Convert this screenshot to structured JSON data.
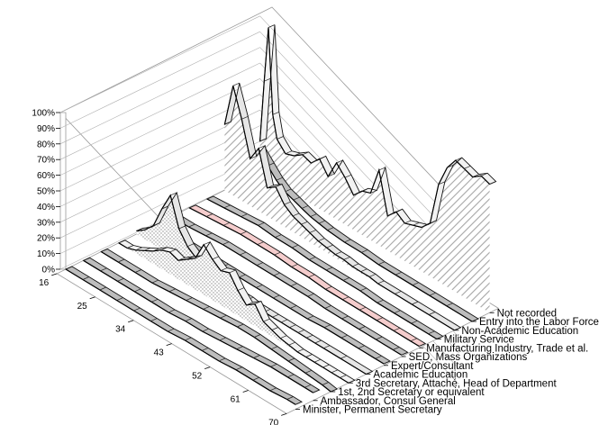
{
  "chart_data": {
    "type": "area",
    "subtype": "3d-area",
    "title": "",
    "x_label": "",
    "z_label": "",
    "x_ticks": [
      "16",
      "25",
      "34",
      "43",
      "52",
      "61",
      "70"
    ],
    "z_ticks": [
      "0%",
      "10%",
      "20%",
      "30%",
      "40%",
      "50%",
      "60%",
      "70%",
      "80%",
      "90%",
      "100%"
    ],
    "zlim": [
      0,
      100
    ],
    "x_range": [
      16,
      70
    ],
    "grid": true,
    "series_axis_labels": [
      "Minister, Permanent Secretary",
      "Ambassador, Consul General",
      "1st, 2nd Secretary or equivalent",
      "3rd Secretary, Attaché, Head of Department",
      "Academic Education",
      "Expert/Consultant",
      "SED, Mass Organizations",
      "Manufacturing Industry, Trade et al.",
      "Military Service",
      "Non-Academic Education",
      "Entry into the Labor Force",
      "Not recorded"
    ],
    "series": [
      {
        "name": "Minister, Permanent Secretary",
        "color": "#bdbdbd",
        "x": [
          16,
          20,
          24,
          28,
          32,
          36,
          40,
          44,
          48,
          52,
          56,
          60,
          64,
          68,
          70
        ],
        "values": [
          0,
          0,
          0,
          0,
          0,
          0,
          0,
          1,
          1,
          1,
          2,
          2,
          2,
          3,
          3
        ]
      },
      {
        "name": "Ambassador, Consul General",
        "color": "#bdbdbd",
        "x": [
          16,
          20,
          24,
          28,
          32,
          36,
          40,
          44,
          48,
          52,
          56,
          60,
          64,
          68,
          70
        ],
        "values": [
          0,
          0,
          0,
          0,
          0,
          0,
          1,
          1,
          2,
          3,
          4,
          5,
          5,
          5,
          5
        ]
      },
      {
        "name": "1st, 2nd Secretary or equivalent",
        "color": "#bdbdbd",
        "x": [
          16,
          20,
          24,
          28,
          32,
          36,
          40,
          44,
          48,
          52,
          56,
          60,
          64,
          68,
          70
        ],
        "values": [
          0,
          0,
          0,
          0,
          1,
          2,
          3,
          4,
          5,
          5,
          4,
          3,
          2,
          1,
          0
        ]
      },
      {
        "name": "3rd Secretary, Attaché, Head of Department",
        "color": "#f2f2f2",
        "x": [
          16,
          18,
          20,
          22,
          24,
          26,
          28,
          30,
          32,
          34,
          36,
          38,
          40,
          42,
          44,
          46,
          48,
          50,
          52,
          54,
          56,
          58,
          60,
          62,
          64,
          66,
          68,
          70
        ],
        "values": [
          0,
          0,
          2,
          5,
          8,
          12,
          14,
          12,
          16,
          20,
          32,
          26,
          22,
          24,
          16,
          10,
          14,
          6,
          4,
          2,
          1,
          0,
          0,
          0,
          0,
          0,
          0,
          0
        ]
      },
      {
        "name": "Academic Education",
        "color": "#e6e6e6",
        "x": [
          16,
          18,
          20,
          22,
          24,
          26,
          28,
          30,
          32,
          34,
          36,
          38,
          40,
          42,
          44,
          46,
          48,
          50,
          52,
          54,
          56,
          58,
          60,
          64,
          70
        ],
        "values": [
          2,
          6,
          12,
          26,
          38,
          20,
          12,
          8,
          6,
          4,
          3,
          2,
          1,
          1,
          0,
          0,
          0,
          0,
          0,
          0,
          0,
          0,
          0,
          0,
          0
        ]
      },
      {
        "name": "Expert/Consultant",
        "color": "#bdbdbd",
        "x": [
          16,
          20,
          24,
          28,
          32,
          36,
          40,
          44,
          48,
          52,
          56,
          60,
          64,
          68,
          70
        ],
        "values": [
          0,
          0,
          0,
          0,
          0,
          0,
          0,
          0,
          0,
          0,
          1,
          1,
          1,
          1,
          1
        ]
      },
      {
        "name": "SED, Mass Organizations",
        "color": "#bdbdbd",
        "x": [
          16,
          20,
          24,
          28,
          32,
          36,
          40,
          44,
          48,
          52,
          56,
          60,
          64,
          68,
          70
        ],
        "values": [
          0,
          0,
          1,
          2,
          2,
          2,
          2,
          2,
          2,
          1,
          1,
          1,
          1,
          1,
          1
        ]
      },
      {
        "name": "Manufacturing Industry, Trade et al.",
        "color": "#f4cccc",
        "x": [
          16,
          20,
          24,
          28,
          32,
          36,
          40,
          44,
          48,
          52,
          56,
          60,
          64,
          68,
          70
        ],
        "values": [
          0,
          1,
          2,
          3,
          3,
          3,
          2,
          2,
          1,
          1,
          1,
          1,
          1,
          1,
          1
        ]
      },
      {
        "name": "Military Service",
        "color": "#bdbdbd",
        "x": [
          16,
          20,
          24,
          28,
          32,
          36,
          40,
          44,
          48,
          52,
          56,
          60,
          64,
          68,
          70
        ],
        "values": [
          0,
          1,
          2,
          3,
          2,
          2,
          1,
          1,
          1,
          1,
          0,
          0,
          0,
          0,
          0
        ]
      },
      {
        "name": "Non-Academic Education",
        "color": "#e6e6e6",
        "x": [
          16,
          18,
          20,
          22,
          24,
          26,
          28,
          30,
          32,
          34,
          36,
          38,
          40,
          42,
          44,
          46,
          48,
          50,
          52,
          56,
          60,
          64,
          70
        ],
        "values": [
          42,
          70,
          52,
          30,
          40,
          18,
          22,
          14,
          10,
          8,
          6,
          4,
          3,
          2,
          2,
          1,
          1,
          1,
          0,
          0,
          0,
          0,
          0
        ]
      },
      {
        "name": "Entry into the Labor Force",
        "color": "#bdbdbd",
        "x": [
          16,
          18,
          20,
          22,
          24,
          26,
          28,
          30,
          32,
          34,
          36,
          40,
          44,
          48,
          52,
          56,
          60,
          64,
          70
        ],
        "values": [
          6,
          18,
          26,
          20,
          14,
          10,
          8,
          6,
          4,
          3,
          2,
          1,
          1,
          0,
          0,
          0,
          0,
          0,
          0
        ]
      },
      {
        "name": "Not recorded",
        "color": "#f2f2f2",
        "x": [
          16,
          17,
          18,
          19,
          20,
          22,
          24,
          26,
          28,
          30,
          32,
          34,
          36,
          38,
          40,
          42,
          44,
          46,
          48,
          50,
          52,
          54,
          56,
          58,
          60,
          62,
          64,
          66,
          68,
          70
        ],
        "values": [
          20,
          60,
          96,
          42,
          28,
          22,
          24,
          28,
          26,
          32,
          24,
          36,
          30,
          22,
          28,
          30,
          48,
          22,
          28,
          24,
          26,
          28,
          34,
          62,
          76,
          84,
          82,
          80,
          84,
          82
        ]
      }
    ]
  }
}
